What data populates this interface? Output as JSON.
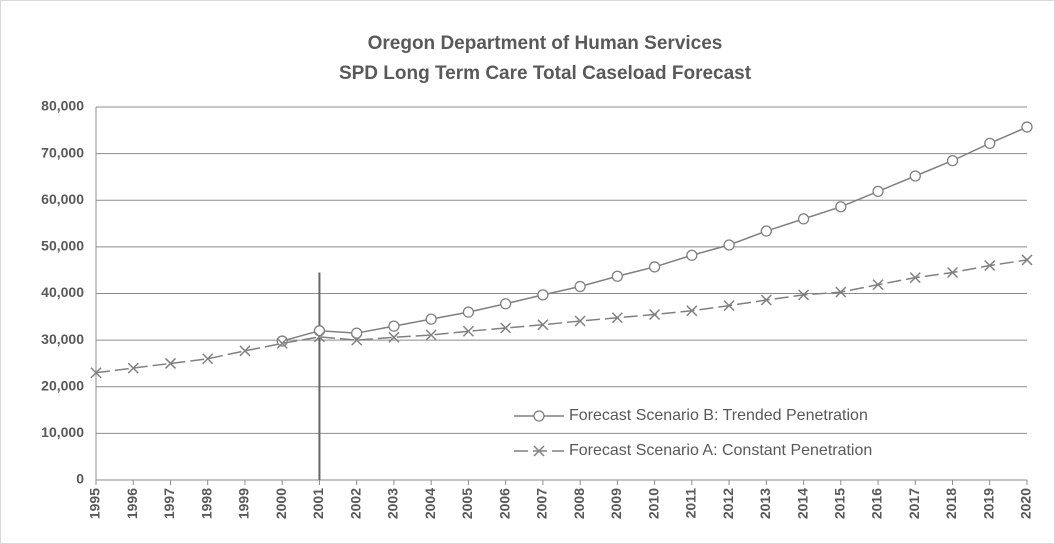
{
  "chart_data": {
    "type": "line",
    "title": [
      "Oregon Department of Human Services",
      "SPD Long Term Care Total Caseload Forecast"
    ],
    "categories": [
      "1995",
      "1996",
      "1997",
      "1998",
      "1999",
      "2000",
      "2001",
      "2002",
      "2003",
      "2004",
      "2005",
      "2006",
      "2007",
      "2008",
      "2009",
      "2010",
      "2011",
      "2012",
      "2013",
      "2014",
      "2015",
      "2016",
      "2017",
      "2018",
      "2019",
      "2020"
    ],
    "series": [
      {
        "name": "Forecast Scenario B: Trended Penetration",
        "color": "#808080",
        "marker": "circle",
        "dash": false,
        "values": [
          null,
          null,
          null,
          null,
          null,
          29800,
          32000,
          31500,
          33000,
          34500,
          36000,
          37800,
          39700,
          41500,
          43700,
          45700,
          48200,
          50400,
          53400,
          56000,
          58600,
          61900,
          65200,
          68500,
          72200,
          75700
        ]
      },
      {
        "name": "Forecast Scenario A: Constant Penetration",
        "color": "#808080",
        "marker": "x",
        "dash": true,
        "values": [
          23000,
          24000,
          25000,
          26000,
          27700,
          29300,
          30700,
          30000,
          30600,
          31100,
          31900,
          32600,
          33300,
          34100,
          34800,
          35500,
          36300,
          37400,
          38600,
          39700,
          40300,
          41900,
          43400,
          44500,
          46000,
          47200
        ]
      }
    ],
    "reference_line": {
      "category": "2001",
      "top": 44500
    },
    "ylim": [
      0,
      80000
    ],
    "yticks": [
      0,
      {
        "value": 10000,
        "label": "10,000"
      },
      {
        "value": 20000,
        "label": "20,000"
      },
      {
        "value": 30000,
        "label": "30,000"
      },
      {
        "value": 40000,
        "label": "40,000"
      },
      {
        "value": 50000,
        "label": "50,000"
      },
      {
        "value": 60000,
        "label": "60,000"
      },
      {
        "value": 70000,
        "label": "70,000"
      },
      {
        "value": 80000,
        "label": "80,000"
      }
    ],
    "grid": true,
    "legend": "lower right"
  }
}
